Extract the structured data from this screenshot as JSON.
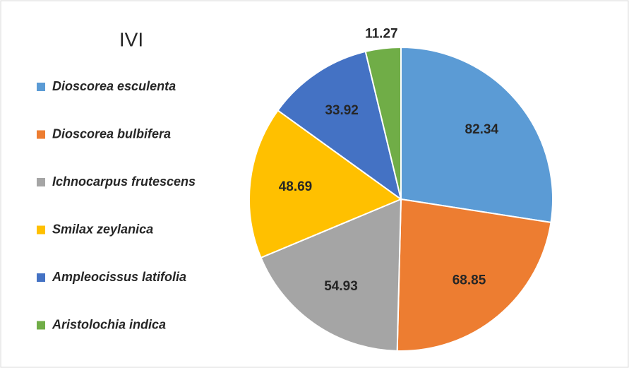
{
  "chart_data": {
    "type": "pie",
    "title": "IVI",
    "categories": [
      "Dioscorea esculenta",
      "Dioscorea bulbifera",
      "Ichnocarpus frutescens",
      "Smilax zeylanica",
      "Ampleocissus latifolia",
      "Aristolochia indica"
    ],
    "values": [
      82.34,
      68.85,
      54.93,
      48.69,
      33.92,
      11.27
    ],
    "colors": [
      "#5b9bd5",
      "#ed7d31",
      "#a5a5a5",
      "#ffc000",
      "#4472c4",
      "#70ad47"
    ],
    "legend": "left"
  }
}
